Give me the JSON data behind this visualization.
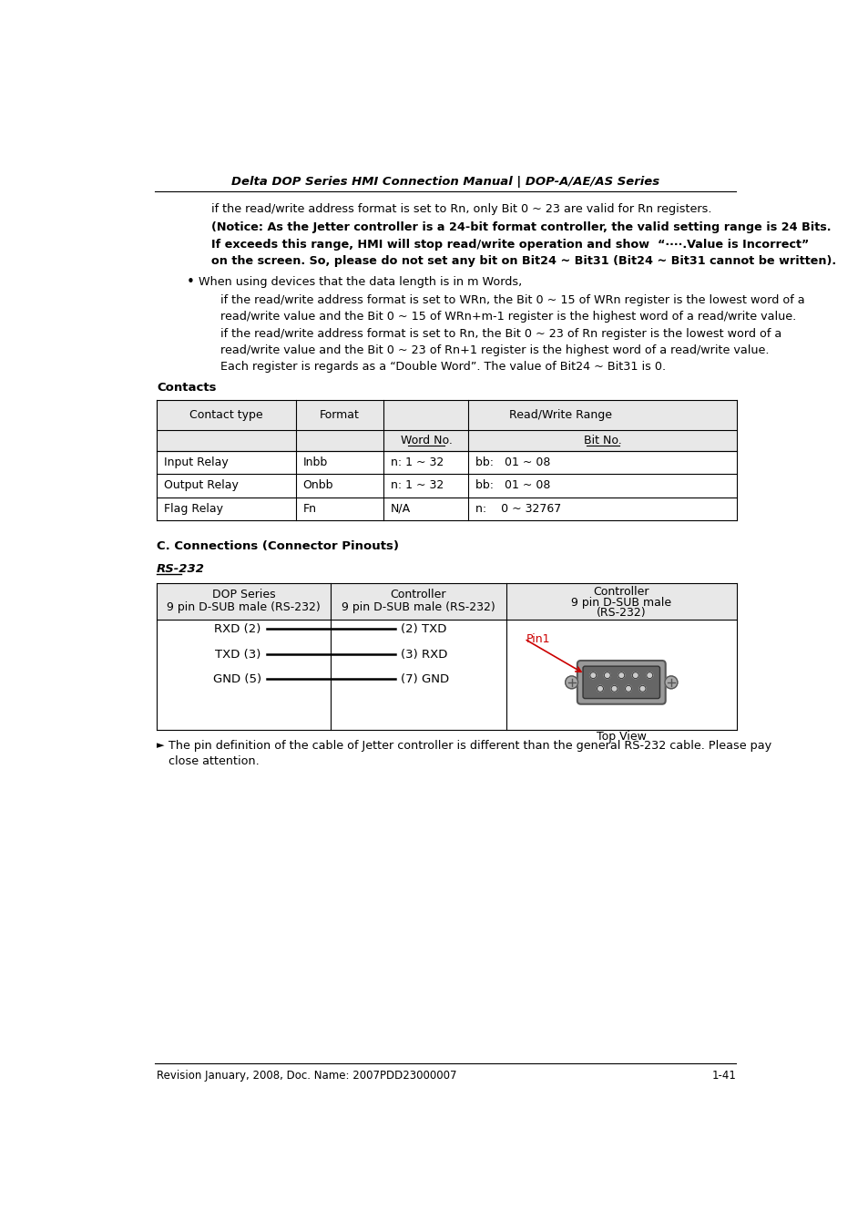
{
  "header_text": "Delta DOP Series HMI Connection Manual | DOP-A/AE/AS Series",
  "footer_left": "Revision January, 2008, Doc. Name: 2007PDD23000007",
  "footer_right": "1-41",
  "bg_color": "#ffffff",
  "text_color": "#000000",
  "para1": "if the read/write address format is set to Rn, only Bit 0 ~ 23 are valid for Rn registers.",
  "para2_bold": "(Notice: As the Jetter controller is a 24-bit format controller, the valid setting range is 24 Bits.",
  "para3_bold": "If exceeds this range, HMI will stop read/write operation and show  “····.Value is Incorrect”",
  "para4_bold": "on the screen. So, please do not set any bit on Bit24 ~ Bit31 (Bit24 ~ Bit31 cannot be written).",
  "bullet_head": "When using devices that the data length is in m Words,",
  "bullet_line1": "if the read/write address format is set to WRn, the Bit 0 ~ 15 of WRn register is the lowest word of a",
  "bullet_line2": "read/write value and the Bit 0 ~ 15 of WRn+m-1 register is the highest word of a read/write value.",
  "bullet_line3": "if the read/write address format is set to Rn, the Bit 0 ~ 23 of Rn register is the lowest word of a",
  "bullet_line4": "read/write value and the Bit 0 ~ 23 of Rn+1 register is the highest word of a read/write value.",
  "bullet_line5": "Each register is regards as a “Double Word”. The value of Bit24 ~ Bit31 is 0.",
  "contacts_label": "Contacts",
  "table_rows": [
    [
      "Input Relay",
      "Inbb",
      "n: 1 ~ 32",
      "bb:   01 ~ 08"
    ],
    [
      "Output Relay",
      "Onbb",
      "n: 1 ~ 32",
      "bb:   01 ~ 08"
    ],
    [
      "Flag Relay",
      "Fn",
      "N/A",
      "n:    0 ~ 32767"
    ]
  ],
  "section_c": "C. Connections (Connector Pinouts)",
  "rs232_label": "RS-232",
  "conn_col1_line1": "DOP Series",
  "conn_col1_line2": "9 pin D-SUB male (RS-232)",
  "conn_col2_line1": "Controller",
  "conn_col2_line2": "9 pin D-SUB male (RS-232)",
  "conn_col3_line1": "Controller",
  "conn_col3_line2": "9 pin D-SUB male",
  "conn_col3_line3": "(RS-232)",
  "wire1_left": "RXD (2)",
  "wire1_right": "(2) TXD",
  "wire2_left": "TXD (3)",
  "wire2_right": "(3) RXD",
  "wire3_left": "GND (5)",
  "wire3_right": "(7) GND",
  "pin1_label": "Pin1",
  "pin1_color": "#cc0000",
  "top_view_label": "Top View",
  "note_text": "The pin definition of the cable of Jetter controller is different than the general RS-232 cable. Please pay",
  "note_text2": "close attention."
}
